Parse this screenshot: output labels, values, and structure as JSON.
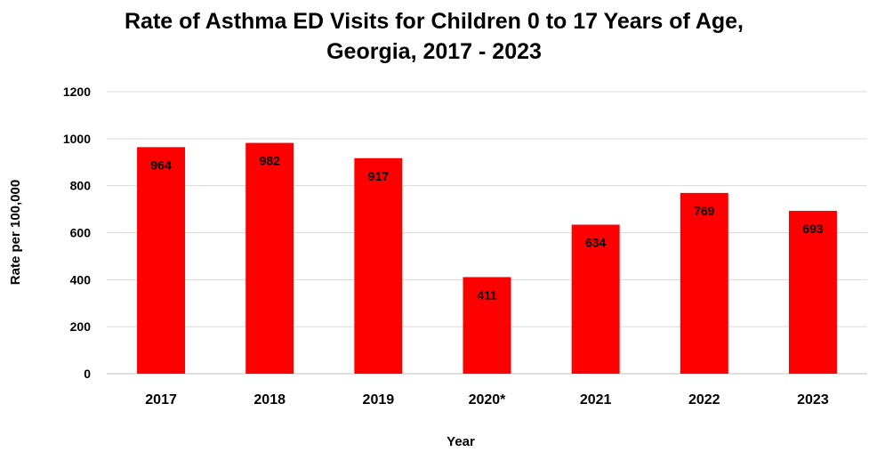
{
  "chart_data": {
    "type": "bar",
    "title_lines": [
      "Rate of Asthma ED Visits for Children 0 to 17 Years of Age,",
      "Georgia, 2017 - 2023"
    ],
    "xlabel": "Year",
    "ylabel": "Rate per 100,000",
    "categories": [
      "2017",
      "2018",
      "2019",
      "2020*",
      "2021",
      "2022",
      "2023"
    ],
    "values": [
      964,
      982,
      917,
      411,
      634,
      769,
      693
    ],
    "data_labels": [
      "964",
      "982",
      "917",
      "411",
      "634",
      "769",
      "693"
    ],
    "ylim": [
      0,
      1200
    ],
    "yticks": [
      0,
      200,
      400,
      600,
      800,
      1000,
      1200
    ],
    "ytick_labels": [
      "0",
      "200",
      "400",
      "600",
      "800",
      "1000",
      "1200"
    ],
    "grid": true,
    "legend": "none",
    "bar_color": "#ff0000"
  }
}
